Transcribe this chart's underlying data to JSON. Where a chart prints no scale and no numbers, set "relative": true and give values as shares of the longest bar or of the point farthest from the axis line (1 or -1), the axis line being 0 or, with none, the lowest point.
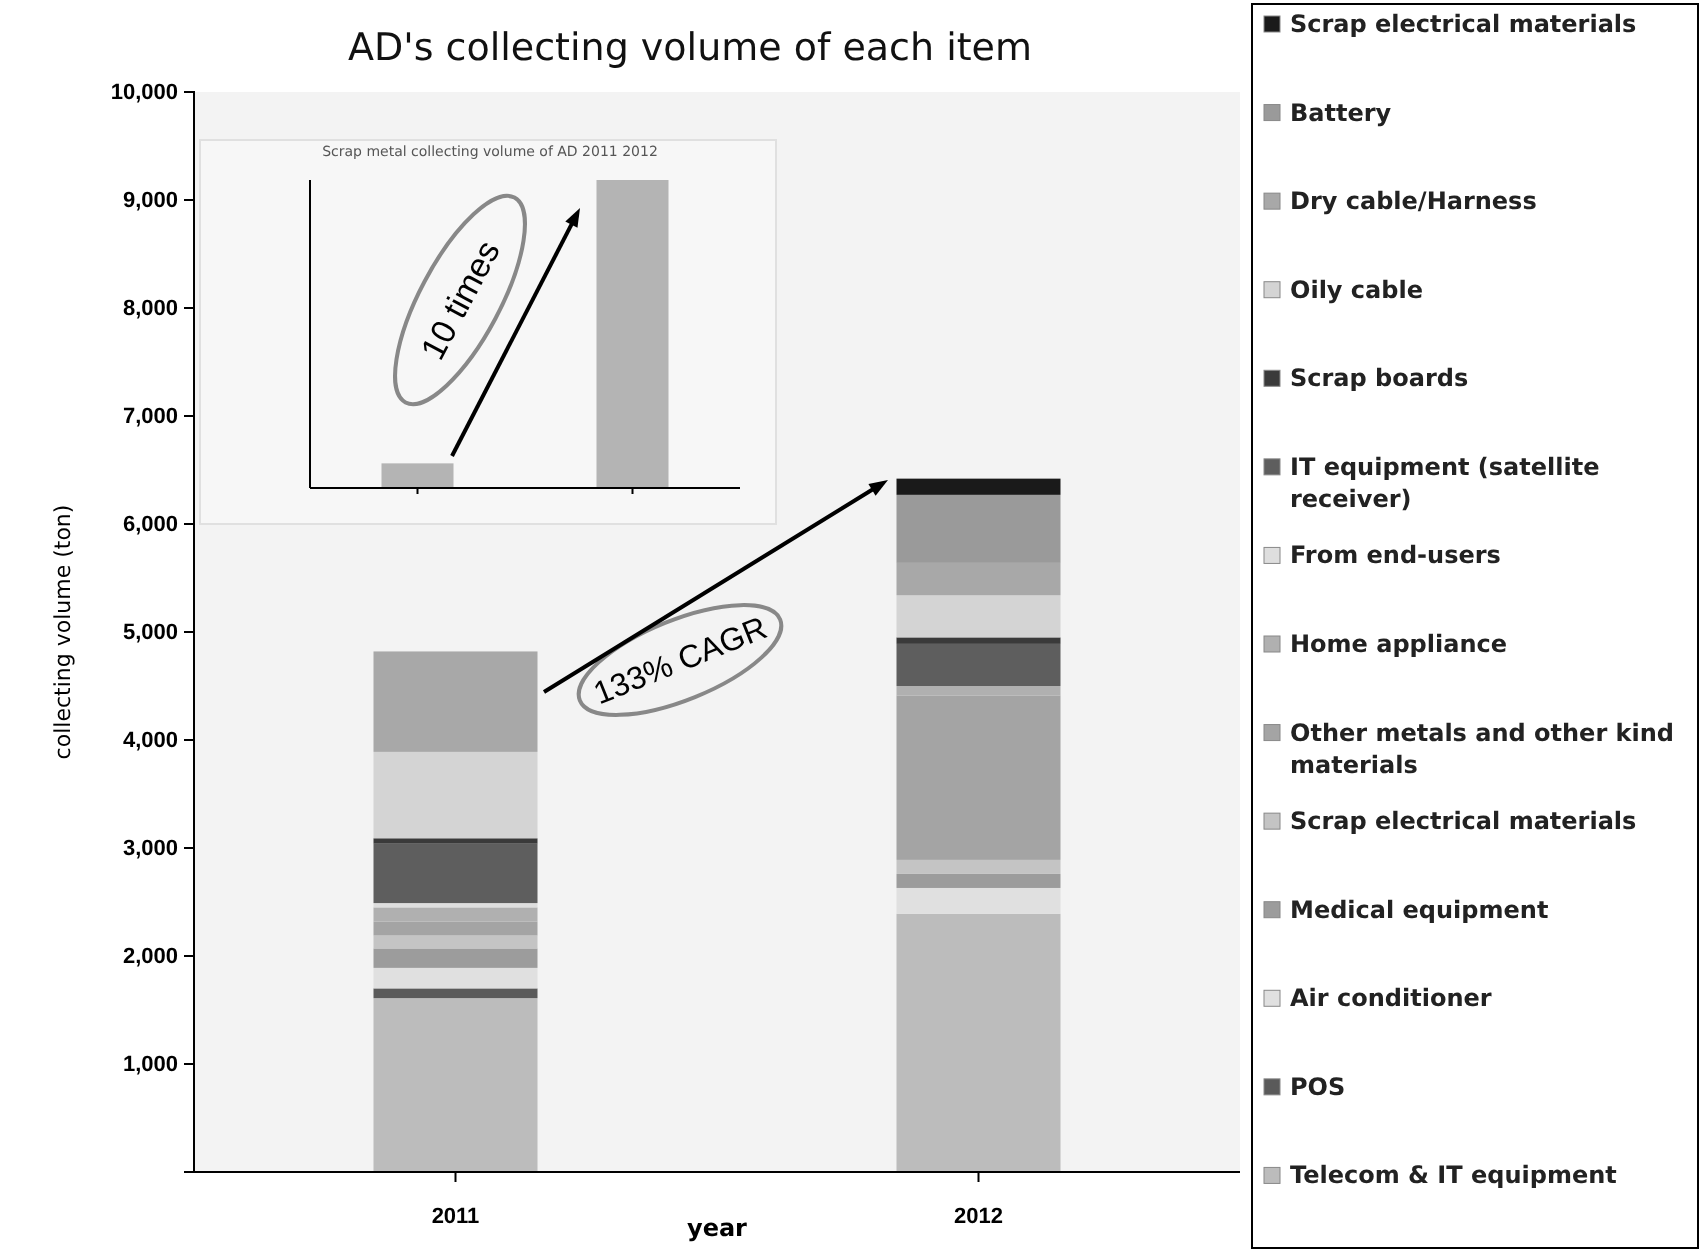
{
  "chart_data": [
    {
      "type": "bar",
      "title": "AD's collecting volume of each item",
      "xlabel": "year",
      "ylabel": "collecting volume (ton)",
      "categories": [
        "2011",
        "2012"
      ],
      "stacked": true,
      "legend": "right",
      "ylim": [
        0,
        10000
      ],
      "yticks": [
        {
          "value": 0,
          "label": null
        },
        {
          "value": 1000,
          "label": "1,000"
        },
        {
          "value": 2000,
          "label": "2,000"
        },
        {
          "value": 3000,
          "label": "3,000"
        },
        {
          "value": 4000,
          "label": "4,000"
        },
        {
          "value": 5000,
          "label": "5,000"
        },
        {
          "value": 6000,
          "label": "6,000"
        },
        {
          "value": 7000,
          "label": "7,000"
        },
        {
          "value": 8000,
          "label": "8,000"
        },
        {
          "value": 9000,
          "label": "9,000"
        },
        {
          "value": 10000,
          "label": "10,000"
        }
      ],
      "series": [
        {
          "name": "Telecom & IT equipment",
          "color": "#bcbcbc",
          "values": [
            1610,
            2390
          ]
        },
        {
          "name": "POS",
          "color": "#5a5a5a",
          "values": [
            90,
            0
          ]
        },
        {
          "name": "Air conditioner",
          "color": "#e0e0e0",
          "values": [
            190,
            240
          ]
        },
        {
          "name": "Medical equipment",
          "color": "#9c9c9c",
          "values": [
            180,
            130
          ]
        },
        {
          "name": "Scrap electrical materials",
          "color": "#c4c4c4",
          "values": [
            120,
            130
          ]
        },
        {
          "name": "Other metals and other kind materials",
          "color": "#a4a4a4",
          "values": [
            130,
            1520
          ]
        },
        {
          "name": "Home appliance",
          "color": "#b0b0b0",
          "values": [
            130,
            90
          ]
        },
        {
          "name": "From end-users",
          "color": "#dedede",
          "values": [
            40,
            0
          ]
        },
        {
          "name": "IT equipment (satellite receiver)",
          "color": "#5e5e5e",
          "values": [
            550,
            390
          ]
        },
        {
          "name": "Scrap boards",
          "color": "#3a3a3a",
          "values": [
            50,
            60
          ]
        },
        {
          "name": "Oily cable",
          "color": "#d4d4d4",
          "values": [
            800,
            390
          ]
        },
        {
          "name": "Dry cable/Harness",
          "color": "#a8a8a8",
          "values": [
            930,
            300
          ]
        },
        {
          "name": "Battery",
          "color": "#9a9a9a",
          "values": [
            0,
            630
          ]
        },
        {
          "name": "Scrap electrical materials",
          "color": "#1a1a1a",
          "values": [
            0,
            150
          ]
        }
      ],
      "annotations": [
        "133% CAGR"
      ]
    },
    {
      "type": "bar",
      "title": "Scrap metal collecting volume of AD 2011 2012",
      "categories": [
        null,
        null
      ],
      "relative": true,
      "values": [
        0.08,
        1
      ],
      "color": "#b4b4b4",
      "annotations": [
        "10 times"
      ]
    }
  ]
}
